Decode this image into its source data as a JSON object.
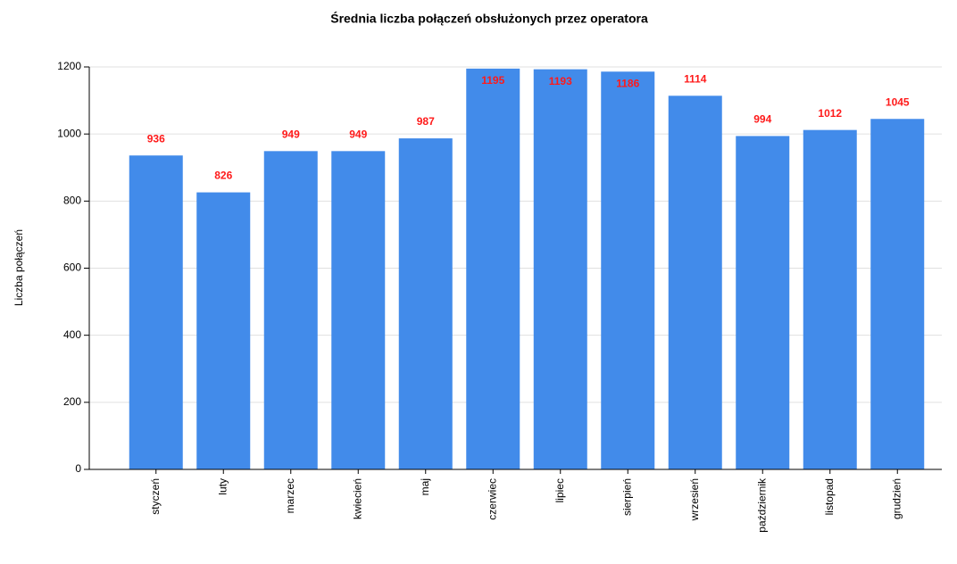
{
  "chart_data": {
    "type": "bar",
    "title": "Średnia liczba połączeń obsłużonych przez operatora",
    "y_label": "Liczba połączeń",
    "categories": [
      "styczeń",
      "luty",
      "marzec",
      "kwiecień",
      "maj",
      "czerwiec",
      "lipiec",
      "sierpień",
      "wrzesień",
      "październik",
      "listopad",
      "grudzień"
    ],
    "values": [
      936,
      826,
      949,
      949,
      987,
      1195,
      1193,
      1186,
      1114,
      994,
      1012,
      1045
    ],
    "color": "#428bea",
    "label_color": "#ff1a1a",
    "ylim": [
      0,
      1200
    ],
    "yticks": [
      0,
      200,
      400,
      600,
      800,
      1000,
      1200
    ],
    "grid": true
  }
}
